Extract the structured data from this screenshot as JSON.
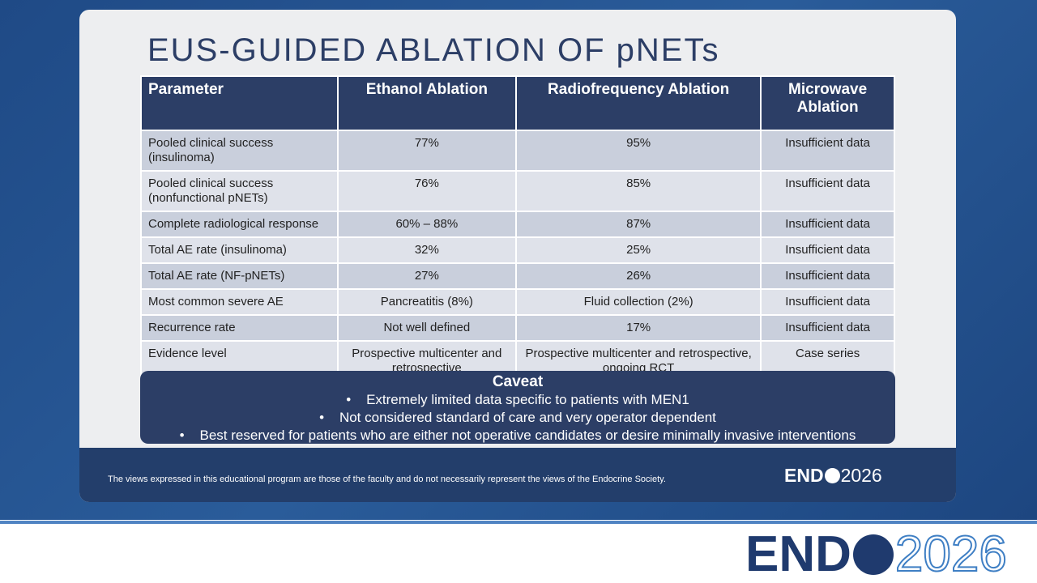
{
  "slide": {
    "title": "EUS-GUIDED ABLATION OF pNETs"
  },
  "table": {
    "header": [
      "Parameter",
      "Ethanol Ablation",
      "Radiofrequency Ablation",
      "Microwave Ablation"
    ],
    "rows": [
      [
        "Pooled clinical success (insulinoma)",
        "77%",
        "95%",
        "Insufficient data"
      ],
      [
        "Pooled clinical success (nonfunctional pNETs)",
        "76%",
        "85%",
        "Insufficient data"
      ],
      [
        "Complete radiological response",
        "60% – 88%",
        "87%",
        "Insufficient data"
      ],
      [
        "Total AE rate (insulinoma)",
        "32%",
        "25%",
        "Insufficient data"
      ],
      [
        "Total AE rate (NF-pNETs)",
        "27%",
        "26%",
        "Insufficient data"
      ],
      [
        "Most common severe AE",
        "Pancreatitis (8%)",
        "Fluid collection (2%)",
        "Insufficient data"
      ],
      [
        "Recurrence rate",
        "Not well defined",
        "17%",
        "Insufficient data"
      ],
      [
        "Evidence level",
        "Prospective multicenter and retrospective",
        "Prospective multicenter and retrospective, ongoing RCT",
        "Case series"
      ]
    ]
  },
  "caveat": {
    "title": "Caveat",
    "bullets": [
      "Extremely limited data specific to patients with MEN1",
      "Not considered standard of care and very operator dependent",
      "Best reserved for patients who are either not operative candidates or desire minimally invasive interventions"
    ]
  },
  "footer": {
    "disclaimer": "The views expressed in this educational program are those of the faculty and do not necessarily represent the views of the Endocrine Society.",
    "logo_left": "END",
    "logo_right": "2026"
  }
}
